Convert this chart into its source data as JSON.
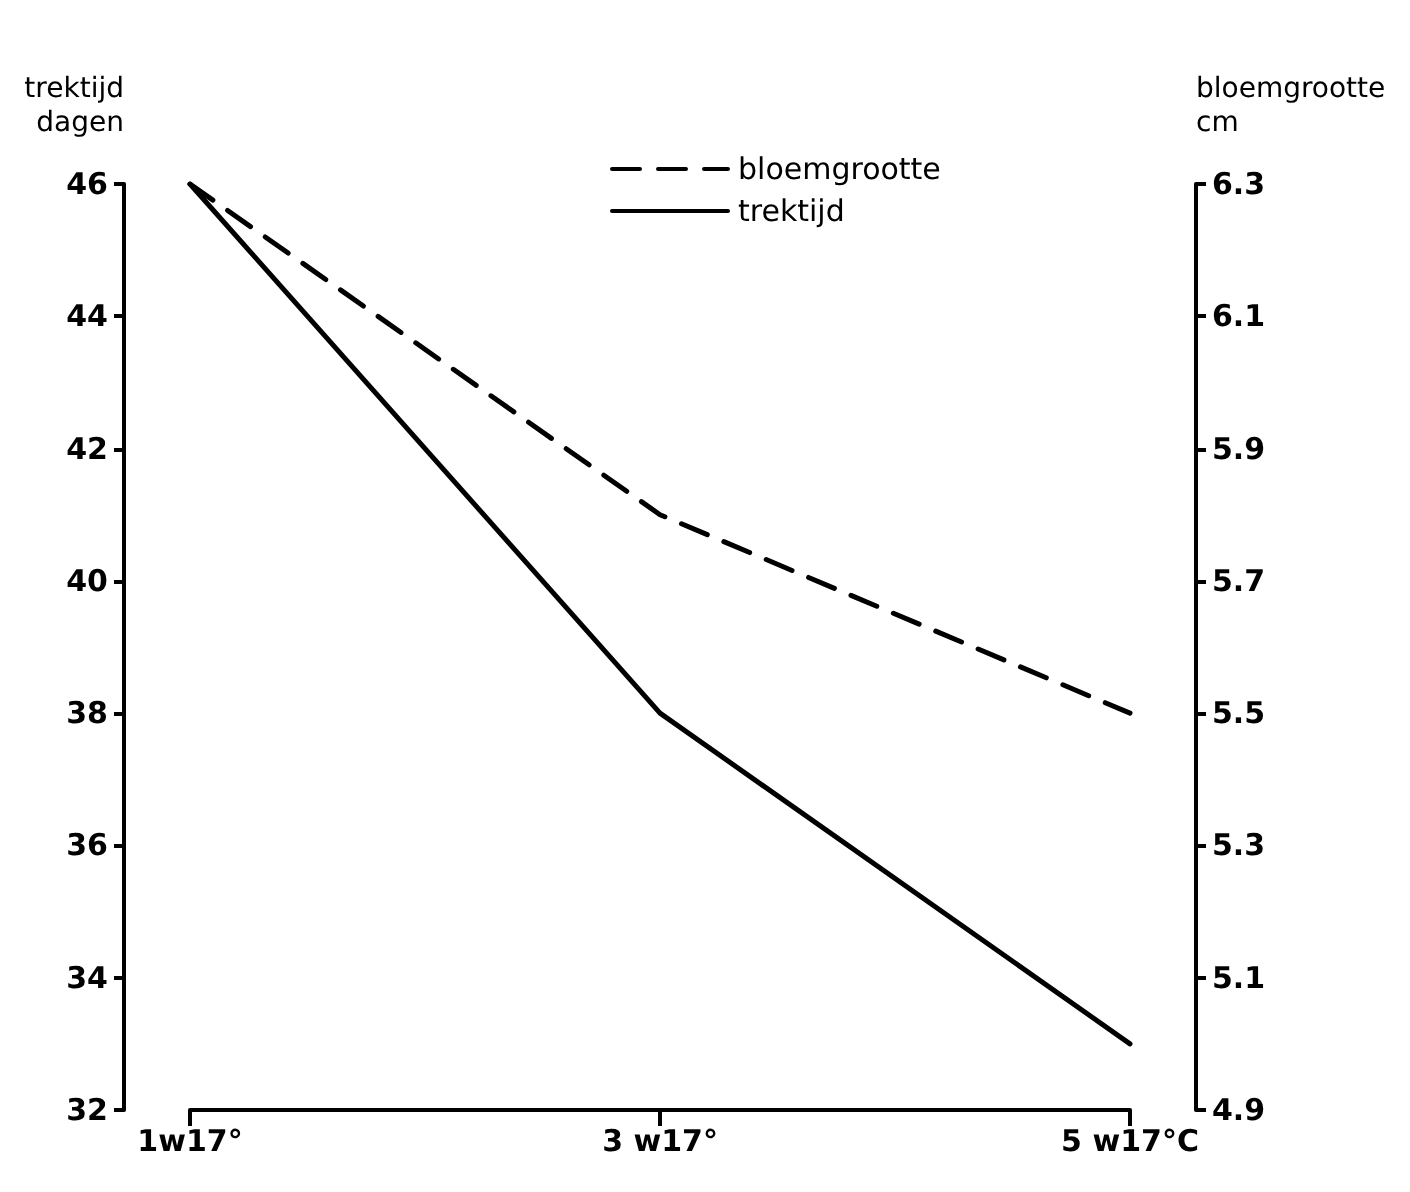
{
  "chart_data": {
    "type": "line",
    "categories": [
      "1w17°",
      "3 w17°",
      "5 w17°C"
    ],
    "ylabel": "trektijd\ndagen",
    "y2label": "bloemgrootte\ncm",
    "ylim": [
      32,
      46
    ],
    "yticks": [
      32,
      34,
      36,
      38,
      40,
      42,
      44,
      46
    ],
    "y2lim": [
      4.9,
      6.3
    ],
    "y2ticks": [
      4.9,
      5.1,
      5.3,
      5.5,
      5.7,
      5.9,
      6.1,
      6.3
    ],
    "series": [
      {
        "name": "bloemgrootte",
        "color": "#000000",
        "axis": "y2",
        "line_style": "dashed",
        "values": [
          6.3,
          5.8,
          5.5
        ]
      },
      {
        "name": "trektijd",
        "color": "#000000",
        "line_style": "solid",
        "values": [
          46,
          38,
          33
        ]
      }
    ],
    "legend": "top",
    "grid": false,
    "marker": "none"
  }
}
